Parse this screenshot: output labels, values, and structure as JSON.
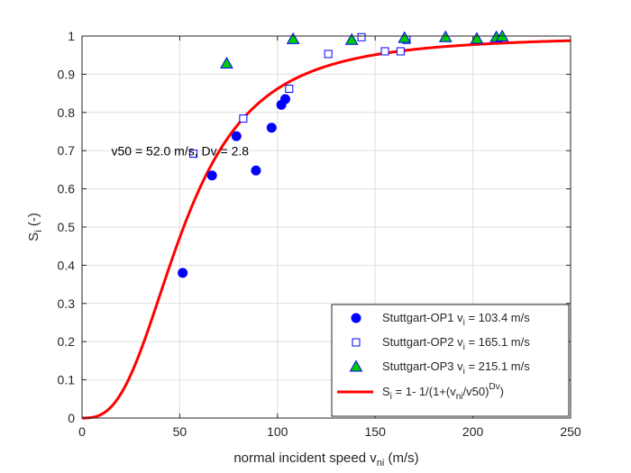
{
  "chart_data": {
    "type": "scatter",
    "title": "",
    "xlabel": "normal incident speed v",
    "xlabel_sub": "ni",
    "xlabel_unit": " (m/s)",
    "ylabel": "S",
    "ylabel_sub": "i",
    "ylabel_unit": " (-)",
    "xlim": [
      0,
      250
    ],
    "ylim": [
      0,
      1
    ],
    "xticks": [
      0,
      50,
      100,
      150,
      200,
      250
    ],
    "yticks": [
      0,
      0.1,
      0.2,
      0.3,
      0.4,
      0.5,
      0.6,
      0.7,
      0.8,
      0.9,
      1
    ],
    "grid": true,
    "legend_position": "bottom-right",
    "annotation": "v50 =  52.0 m/s, Dv = 2.8",
    "series": [
      {
        "name": "Stuttgart-OP1",
        "legend_parts": [
          "Stuttgart-OP1 v",
          "i",
          " = 103.4 m/s"
        ],
        "marker": "circle",
        "color": "#0000ff",
        "points": [
          [
            51.5,
            0.38
          ],
          [
            66.5,
            0.635
          ],
          [
            79,
            0.738
          ],
          [
            89,
            0.648
          ],
          [
            97,
            0.76
          ],
          [
            102,
            0.82
          ],
          [
            104,
            0.835
          ]
        ]
      },
      {
        "name": "Stuttgart-OP2",
        "legend_parts": [
          "Stuttgart-OP2 v",
          "i",
          " = 165.1 m/s"
        ],
        "marker": "square",
        "color": "#0000ff",
        "points": [
          [
            57,
            0.692
          ],
          [
            82.5,
            0.784
          ],
          [
            106,
            0.862
          ],
          [
            126,
            0.953
          ],
          [
            143,
            0.997
          ],
          [
            155,
            0.96
          ],
          [
            163,
            0.96
          ],
          [
            166,
            0.99
          ]
        ]
      },
      {
        "name": "Stuttgart-OP3",
        "legend_parts": [
          "Stuttgart-OP3 v",
          "i",
          " = 215.1 m/s"
        ],
        "marker": "triangle",
        "color": "#00cc00",
        "edge_color": "#0000ff",
        "points": [
          [
            74,
            0.928
          ],
          [
            108,
            0.992
          ],
          [
            138,
            0.99
          ],
          [
            165,
            0.995
          ],
          [
            186,
            0.997
          ],
          [
            202,
            0.993
          ],
          [
            212,
            0.997
          ],
          [
            215,
            0.999
          ]
        ]
      },
      {
        "name": "fit",
        "legend_parts": [
          "S",
          "i",
          " = 1- 1/(1+(v",
          "ni",
          "/v50)",
          "Dv",
          ")"
        ],
        "type": "line",
        "color": "#ff0000",
        "v50": 52.0,
        "Dv": 2.8
      }
    ]
  }
}
